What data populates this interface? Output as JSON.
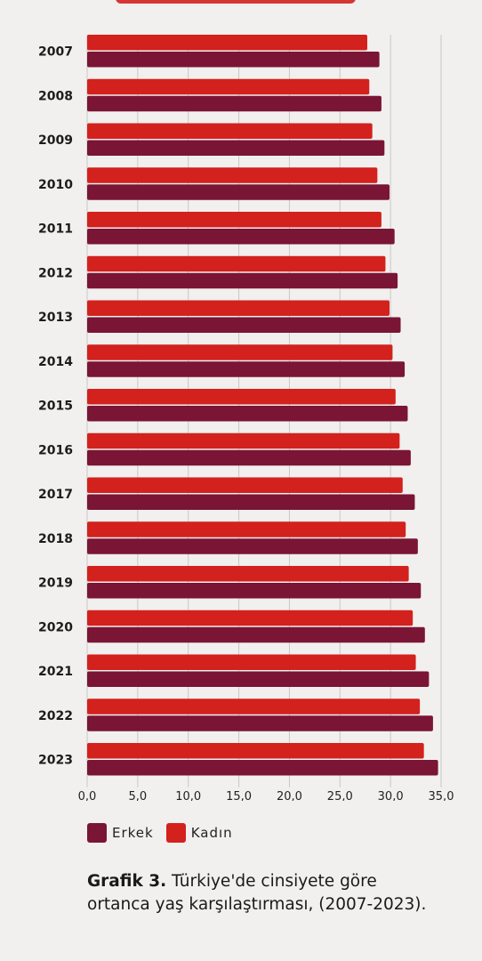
{
  "chart_data": {
    "type": "bar",
    "orientation": "horizontal",
    "categories": [
      "2007",
      "2008",
      "2009",
      "2010",
      "2011",
      "2012",
      "2013",
      "2014",
      "2015",
      "2016",
      "2017",
      "2018",
      "2019",
      "2020",
      "2021",
      "2022",
      "2023"
    ],
    "series": [
      {
        "name": "Kadın",
        "color": "#d3211d",
        "values": [
          27.7,
          27.9,
          28.2,
          28.7,
          29.1,
          29.5,
          29.9,
          30.2,
          30.5,
          30.9,
          31.2,
          31.5,
          31.8,
          32.2,
          32.5,
          32.9,
          33.3
        ]
      },
      {
        "name": "Erkek",
        "color": "#7a1535",
        "values": [
          28.9,
          29.1,
          29.4,
          29.9,
          30.4,
          30.7,
          31.0,
          31.4,
          31.7,
          32.0,
          32.4,
          32.7,
          33.0,
          33.4,
          33.8,
          34.2,
          34.7
        ]
      }
    ],
    "xlim": [
      0,
      35
    ],
    "xticks": [
      "0,0",
      "5,0",
      "10,0",
      "15,0",
      "20,0",
      "25,0",
      "30,0",
      "35,0"
    ],
    "grid": "vertical",
    "legend_position": "bottom-left"
  },
  "legend": {
    "items": [
      {
        "label": "Erkek",
        "color": "#7a1535"
      },
      {
        "label": "Kadın",
        "color": "#d3211d"
      }
    ]
  },
  "caption": {
    "bold": "Grafik 3.",
    "text": " Türkiye'de cinsiyete göre ortanca yaş karşılaştırması, (2007-2023)."
  }
}
